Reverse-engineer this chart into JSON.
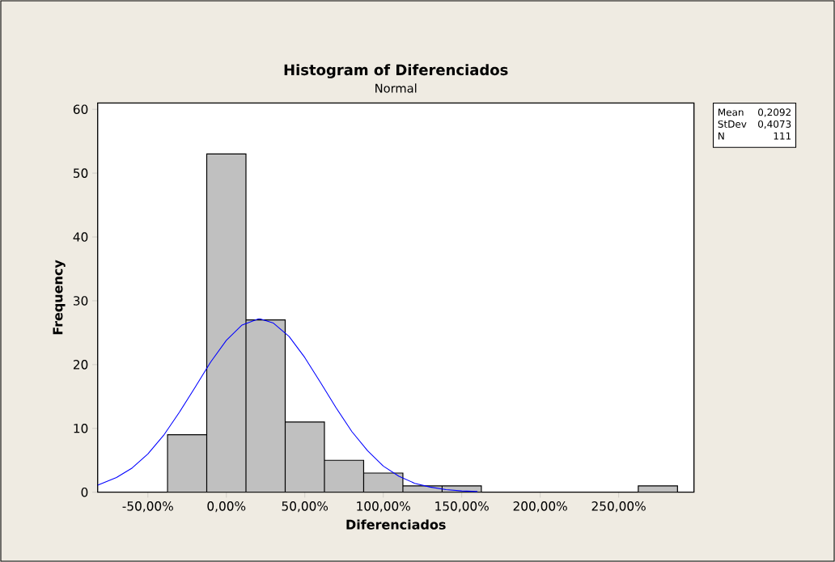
{
  "chart_data": {
    "type": "histogram",
    "title": "Histogram of Diferenciados",
    "subtitle": "Normal",
    "xlabel": "Diferenciados",
    "ylabel": "Frequency",
    "bins": [
      -37.5,
      -12.5,
      12.5,
      37.5,
      62.5,
      87.5,
      112.5,
      137.5,
      162.5,
      187.5,
      212.5,
      237.5,
      262.5,
      287.5
    ],
    "values": [
      9,
      53,
      27,
      11,
      5,
      3,
      1,
      1,
      0,
      0,
      0,
      0,
      1
    ],
    "color": "#c0c0c0",
    "series": [
      {
        "type": "line",
        "color": "#0000ff",
        "x": [
          -82,
          -70,
          -60,
          -50,
          -40,
          -30,
          -20,
          -10,
          0,
          10,
          20.9,
          30,
          40,
          50,
          60,
          70,
          80,
          90,
          100,
          110,
          120,
          130,
          140,
          150,
          160
        ],
        "values": [
          1.1,
          2.3,
          3.8,
          6.0,
          8.9,
          12.5,
          16.4,
          20.4,
          23.8,
          26.2,
          27.2,
          26.5,
          24.4,
          21.1,
          17.2,
          13.2,
          9.5,
          6.5,
          4.1,
          2.5,
          1.4,
          0.8,
          0.4,
          0.2,
          0.1
        ]
      }
    ],
    "xlim": [
      -82,
      298
    ],
    "ylim": [
      0,
      61
    ],
    "xticks": [
      {
        "value": -50,
        "label": "-50,00%"
      },
      {
        "value": 0,
        "label": "0,00%"
      },
      {
        "value": 50,
        "label": "50,00%"
      },
      {
        "value": 100,
        "label": "100,00%"
      },
      {
        "value": 150,
        "label": "150,00%"
      },
      {
        "value": 200,
        "label": "200,00%"
      },
      {
        "value": 250,
        "label": "250,00%"
      }
    ],
    "yticks": [
      0,
      10,
      20,
      30,
      40,
      50,
      60
    ],
    "annotations": [
      "Mean",
      "0,2092",
      "StDev",
      "0,4073",
      "N",
      "111"
    ]
  }
}
